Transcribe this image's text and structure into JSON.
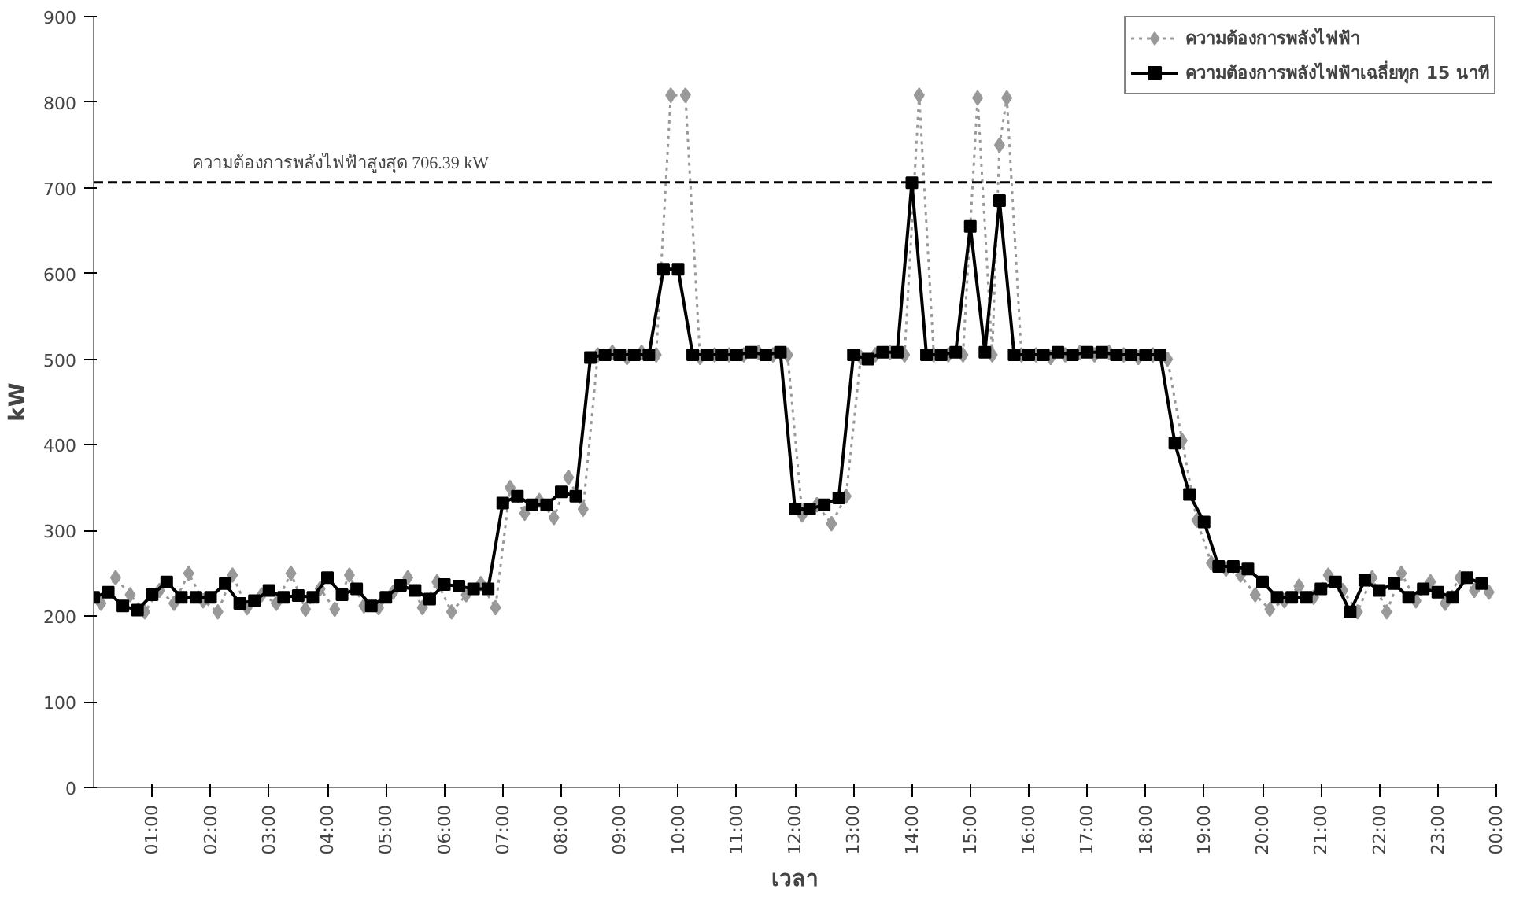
{
  "chart_data": {
    "type": "line",
    "xlabel": "เวลา",
    "ylabel": "kW",
    "x": [
      0,
      0.25,
      0.5,
      0.75,
      1,
      1.25,
      1.5,
      1.75,
      2,
      2.25,
      2.5,
      2.75,
      3,
      3.25,
      3.5,
      3.75,
      4,
      4.25,
      4.5,
      4.75,
      5,
      5.25,
      5.5,
      5.75,
      6,
      6.25,
      6.5,
      6.75,
      7,
      7.25,
      7.5,
      7.75,
      8,
      8.25,
      8.5,
      8.75,
      9,
      9.25,
      9.5,
      9.75,
      10,
      10.25,
      10.5,
      10.75,
      11,
      11.25,
      11.5,
      11.75,
      12,
      12.25,
      12.5,
      12.75,
      13,
      13.25,
      13.5,
      13.75,
      14,
      14.25,
      14.5,
      14.75,
      15,
      15.25,
      15.5,
      15.75,
      16,
      16.25,
      16.5,
      16.75,
      17,
      17.25,
      17.5,
      17.75,
      18,
      18.25,
      18.5,
      18.75,
      19,
      19.25,
      19.5,
      19.75,
      20,
      20.25,
      20.5,
      20.75,
      21,
      21.25,
      21.5,
      21.75,
      22,
      22.25,
      22.5,
      22.75,
      23,
      23.25,
      23.5,
      23.75
    ],
    "series": [
      {
        "name": "ความต้องการพลังไฟฟ้า",
        "color": "#999999",
        "marker": "diamond",
        "line_style": "dotted",
        "x": [
          0.125,
          0.375,
          0.625,
          0.875,
          1.125,
          1.375,
          1.625,
          1.875,
          2.125,
          2.375,
          2.625,
          2.875,
          3.125,
          3.375,
          3.625,
          3.875,
          4.125,
          4.375,
          4.625,
          4.875,
          5.125,
          5.375,
          5.625,
          5.875,
          6.125,
          6.375,
          6.625,
          6.875,
          7.125,
          7.375,
          7.625,
          7.875,
          8.125,
          8.375,
          8.625,
          8.875,
          9.125,
          9.375,
          9.625,
          9.875,
          10.125,
          10.375,
          10.625,
          10.875,
          11.125,
          11.375,
          11.625,
          11.875,
          12.125,
          12.375,
          12.625,
          12.875,
          13.125,
          13.375,
          13.625,
          13.875,
          14.125,
          14.375,
          14.625,
          14.875,
          15.125,
          15.375,
          15.5,
          15.625,
          15.875,
          16.125,
          16.375,
          16.625,
          16.875,
          17.125,
          17.375,
          17.625,
          17.875,
          18.125,
          18.375,
          18.625,
          18.875,
          19.125,
          19.375,
          19.625,
          19.875,
          20.125,
          20.375,
          20.625,
          20.875,
          21.125,
          21.375,
          21.625,
          21.875,
          22.125,
          22.375,
          22.625,
          22.875,
          23.125,
          23.375,
          23.625,
          23.875
        ],
        "values": [
          215,
          245,
          225,
          205,
          230,
          215,
          250,
          218,
          205,
          248,
          210,
          225,
          215,
          250,
          208,
          232,
          208,
          248,
          212,
          210,
          228,
          245,
          210,
          240,
          205,
          225,
          238,
          210,
          350,
          320,
          335,
          315,
          362,
          325,
          505,
          508,
          502,
          508,
          505,
          808,
          808,
          502,
          505,
          505,
          505,
          508,
          505,
          505,
          318,
          330,
          308,
          340,
          502,
          505,
          508,
          505,
          808,
          505,
          505,
          505,
          805,
          505,
          750,
          805,
          505,
          505,
          502,
          505,
          508,
          505,
          508,
          505,
          502,
          505,
          500,
          405,
          312,
          262,
          255,
          248,
          225,
          208,
          218,
          235,
          222,
          248,
          230,
          205,
          245,
          205,
          250,
          218,
          240,
          215,
          245,
          230,
          228
        ]
      },
      {
        "name": "ความต้องการพลังไฟฟ้าเฉลี่ยทุก 15 นาที",
        "color": "#000000",
        "marker": "square",
        "line_style": "solid",
        "values": [
          222,
          228,
          212,
          207,
          225,
          240,
          222,
          222,
          222,
          238,
          215,
          218,
          230,
          222,
          224,
          222,
          245,
          225,
          232,
          212,
          222,
          236,
          230,
          220,
          237,
          235,
          232,
          232,
          332,
          340,
          330,
          330,
          345,
          340,
          502,
          505,
          505,
          505,
          505,
          605,
          605,
          505,
          505,
          505,
          505,
          508,
          505,
          508,
          325,
          325,
          330,
          338,
          505,
          500,
          508,
          508,
          706,
          505,
          505,
          508,
          655,
          508,
          685,
          505,
          505,
          505,
          508,
          505,
          508,
          508,
          505,
          505,
          505,
          505,
          402,
          342,
          310,
          258,
          258,
          255,
          240,
          222,
          222,
          222,
          232,
          240,
          205,
          242,
          230,
          238,
          222,
          232,
          228,
          222,
          245,
          238
        ]
      }
    ],
    "xlim": [
      0,
      24
    ],
    "xticks": [
      {
        "value": 1,
        "label": "01:00"
      },
      {
        "value": 2,
        "label": "02:00"
      },
      {
        "value": 3,
        "label": "03:00"
      },
      {
        "value": 4,
        "label": "04:00"
      },
      {
        "value": 5,
        "label": "05:00"
      },
      {
        "value": 6,
        "label": "06:00"
      },
      {
        "value": 7,
        "label": "07:00"
      },
      {
        "value": 8,
        "label": "08:00"
      },
      {
        "value": 9,
        "label": "09:00"
      },
      {
        "value": 10,
        "label": "10:00"
      },
      {
        "value": 11,
        "label": "11:00"
      },
      {
        "value": 12,
        "label": "12:00"
      },
      {
        "value": 13,
        "label": "13:00"
      },
      {
        "value": 14,
        "label": "14:00"
      },
      {
        "value": 15,
        "label": "15:00"
      },
      {
        "value": 16,
        "label": "16:00"
      },
      {
        "value": 17,
        "label": "17:00"
      },
      {
        "value": 18,
        "label": "18:00"
      },
      {
        "value": 19,
        "label": "19:00"
      },
      {
        "value": 20,
        "label": "20:00"
      },
      {
        "value": 21,
        "label": "21:00"
      },
      {
        "value": 22,
        "label": "22:00"
      },
      {
        "value": 23,
        "label": "23:00"
      },
      {
        "value": 24,
        "label": "00:00"
      }
    ],
    "ylim": [
      0,
      900
    ],
    "yticks": [
      0,
      100,
      200,
      300,
      400,
      500,
      600,
      700,
      800,
      900
    ],
    "ref_lines": [
      {
        "axis": "y",
        "value": 706.39,
        "label": "ความต้องการพลังไฟฟ้าสูงสุด 706.39 kW",
        "color": "#000000",
        "line_style": "dashed"
      }
    ],
    "legend": "top right",
    "grid": false
  }
}
